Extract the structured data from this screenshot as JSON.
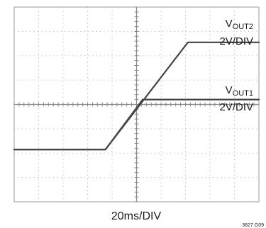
{
  "chart_data": {
    "type": "line",
    "xlabel": "20ms/DIV",
    "figure_id": "3827 G09",
    "grid": true,
    "x_divisions": 10,
    "y_divisions": 8,
    "x_range_div": [
      0,
      10
    ],
    "y_range_div": [
      0,
      8
    ],
    "series": [
      {
        "name_main": "V",
        "name_sub": "OUT2",
        "scale": "2V/DIV",
        "color": "#444444",
        "x_div": [
          0,
          3.73,
          7.1,
          10
        ],
        "y_div": [
          2.15,
          2.15,
          6.55,
          6.55
        ]
      },
      {
        "name_main": "V",
        "name_sub": "OUT1",
        "scale": "2V/DIV",
        "color": "#444444",
        "x_div": [
          0,
          3.73,
          5.25,
          10
        ],
        "y_div": [
          2.15,
          2.15,
          4.2,
          4.2
        ]
      }
    ]
  }
}
